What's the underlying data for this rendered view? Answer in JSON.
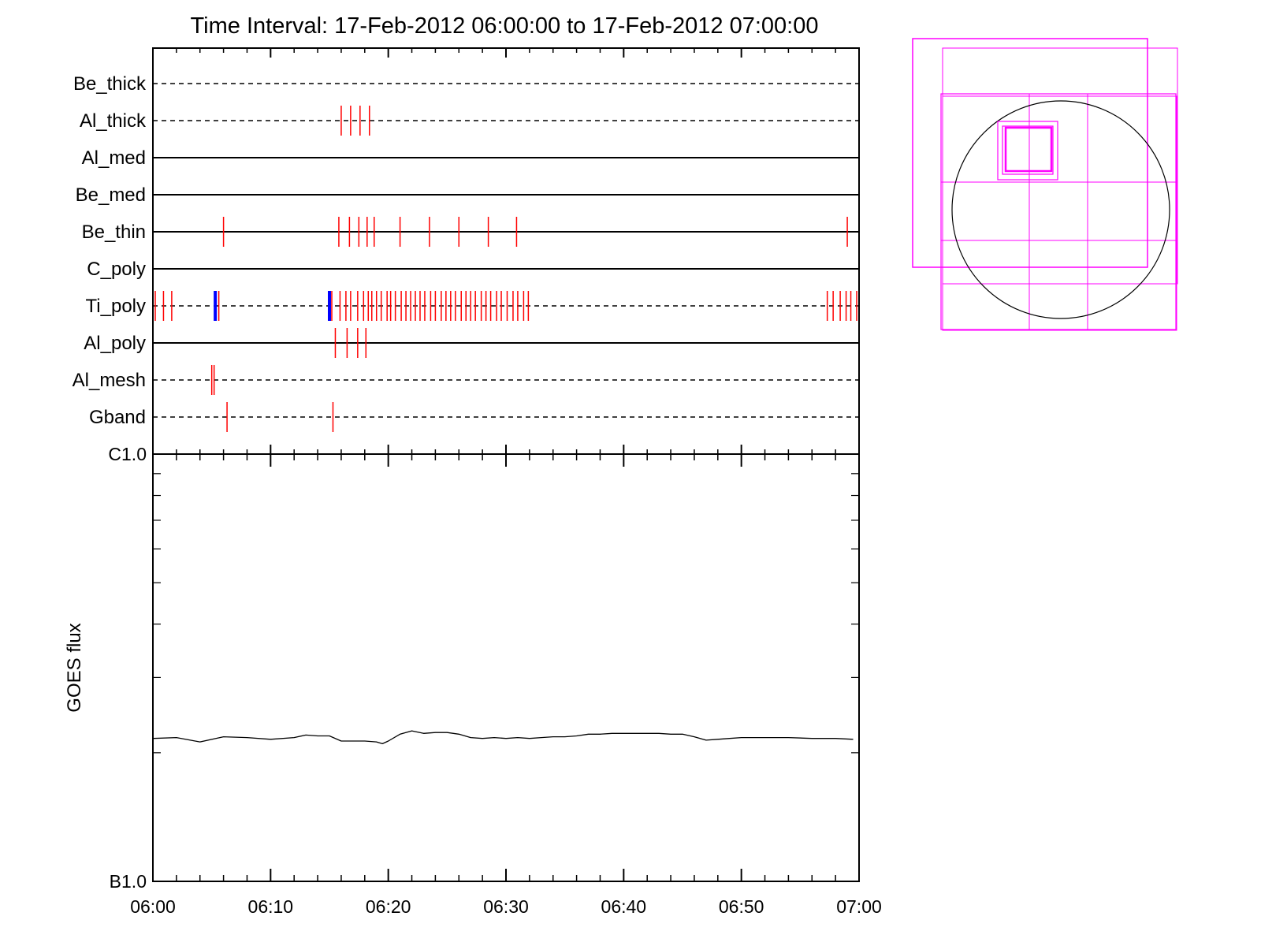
{
  "title": "Time Interval: 17-Feb-2012 06:00:00 to 17-Feb-2012 07:00:00",
  "colors": {
    "axis": "#000000",
    "event": "#ff0000",
    "highlight": "#0000ff",
    "fov": "#ff00ff",
    "sun": "#000000"
  },
  "chart_data": [
    {
      "type": "timeline",
      "x_unit": "minutes after 06:00",
      "xlim": [
        0,
        60
      ],
      "rows": [
        {
          "label": "Be_thick",
          "style": "dashed",
          "events": []
        },
        {
          "label": "Al_thick",
          "style": "dashed",
          "events": [
            16.0,
            16.8,
            17.6,
            18.4
          ]
        },
        {
          "label": "Al_med",
          "style": "solid",
          "events": []
        },
        {
          "label": "Be_med",
          "style": "solid",
          "events": []
        },
        {
          "label": "Be_thin",
          "style": "solid",
          "events": [
            6.0,
            15.8,
            16.7,
            17.5,
            18.2,
            18.8,
            21.0,
            23.5,
            26.0,
            28.5,
            30.9,
            59.0
          ]
        },
        {
          "label": "C_poly",
          "style": "solid",
          "events": []
        },
        {
          "label": "Ti_poly",
          "style": "dashed",
          "highlight_events": [
            5.3,
            15.0
          ],
          "events": [
            0.2,
            0.9,
            1.6,
            5.6,
            15.2,
            15.9,
            16.4,
            16.8,
            17.4,
            17.9,
            18.3,
            18.6,
            19.0,
            19.4,
            19.9,
            20.2,
            20.6,
            21.1,
            21.5,
            21.9,
            22.3,
            22.7,
            23.1,
            23.6,
            24.0,
            24.5,
            24.9,
            25.3,
            25.7,
            26.2,
            26.6,
            27.0,
            27.4,
            27.9,
            28.3,
            28.7,
            29.2,
            29.6,
            30.1,
            30.6,
            31.0,
            31.5,
            31.9,
            57.3,
            57.8,
            58.4,
            58.9,
            59.3,
            59.8
          ]
        },
        {
          "label": "Al_poly",
          "style": "solid",
          "events": [
            15.5,
            16.5,
            17.4,
            18.1
          ]
        },
        {
          "label": "Al_mesh",
          "style": "dashed",
          "events": [
            5.0,
            5.2
          ]
        },
        {
          "label": "Gband",
          "style": "dashed",
          "events": [
            6.3,
            15.3
          ]
        }
      ]
    },
    {
      "type": "line",
      "xlabel": "",
      "ylabel": "GOES flux",
      "y_scale": "log",
      "ylim": [
        1e-07,
        1e-06
      ],
      "y_tick_labels": [
        {
          "value": 1e-06,
          "label": "C1.0"
        },
        {
          "value": 1e-07,
          "label": "B1.0"
        }
      ],
      "x_ticks": [
        0,
        10,
        20,
        30,
        40,
        50,
        60
      ],
      "x_tick_labels": [
        "06:00",
        "06:10",
        "06:20",
        "06:30",
        "06:40",
        "06:50",
        "07:00"
      ],
      "series": [
        {
          "x": [
            0,
            2,
            4,
            6,
            8,
            10,
            12,
            13,
            14,
            15,
            16,
            17,
            18,
            19,
            19.5,
            20,
            21,
            22,
            23,
            24,
            25,
            26,
            27,
            28,
            29,
            30,
            31,
            32,
            33,
            34,
            35,
            36,
            37,
            38,
            39,
            40,
            41,
            42,
            43,
            44,
            45,
            46,
            47,
            48,
            49,
            50,
            52,
            54,
            56,
            58,
            59.5
          ],
          "y": [
            2.16e-07,
            2.17e-07,
            2.12e-07,
            2.18e-07,
            2.17e-07,
            2.15e-07,
            2.17e-07,
            2.2e-07,
            2.19e-07,
            2.19e-07,
            2.13e-07,
            2.13e-07,
            2.13e-07,
            2.12e-07,
            2.1e-07,
            2.13e-07,
            2.21e-07,
            2.25e-07,
            2.22e-07,
            2.23e-07,
            2.23e-07,
            2.21e-07,
            2.17e-07,
            2.16e-07,
            2.17e-07,
            2.16e-07,
            2.17e-07,
            2.16e-07,
            2.17e-07,
            2.18e-07,
            2.18e-07,
            2.19e-07,
            2.21e-07,
            2.21e-07,
            2.22e-07,
            2.22e-07,
            2.22e-07,
            2.22e-07,
            2.22e-07,
            2.21e-07,
            2.21e-07,
            2.18e-07,
            2.14e-07,
            2.15e-07,
            2.16e-07,
            2.17e-07,
            2.17e-07,
            2.17e-07,
            2.16e-07,
            2.16e-07,
            2.15e-07
          ]
        }
      ]
    }
  ]
}
